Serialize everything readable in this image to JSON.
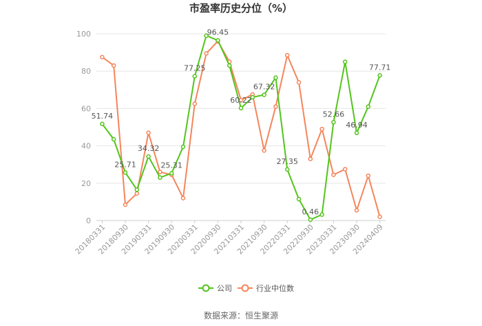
{
  "chart_data": {
    "type": "line",
    "title": "市盈率历史分位（%）",
    "xlabel": "",
    "ylabel": "",
    "ylim": [
      0,
      100
    ],
    "yticks": [
      0,
      20,
      40,
      60,
      80,
      100
    ],
    "grid": "horizontal",
    "legend_position": "bottom",
    "categories": [
      "20180331",
      "",
      "20180930",
      "",
      "20190331",
      "",
      "20190930",
      "",
      "20200331",
      "",
      "20200930",
      "",
      "20210331",
      "",
      "20210930",
      "",
      "20220331",
      "",
      "20220930",
      "",
      "20230331",
      "",
      "20230930",
      "",
      "20240409"
    ],
    "tick_labels": [
      "20180331",
      "20180930",
      "20190331",
      "20190930",
      "20200331",
      "20200930",
      "20210331",
      "20210930",
      "20220331",
      "20220930",
      "20230331",
      "20230930",
      "20240409"
    ],
    "series": [
      {
        "name": "公司",
        "color": "#52c41a",
        "values": [
          51.74,
          43.5,
          25.71,
          16.5,
          34.32,
          23.0,
          25.31,
          39.5,
          77.25,
          99.0,
          96.45,
          83.0,
          60.22,
          66.0,
          67.32,
          76.5,
          27.35,
          11.5,
          0.46,
          3.2,
          52.66,
          85.0,
          46.94,
          61.0,
          77.71
        ],
        "data_labels": {
          "0": "51.74",
          "2": "25.71",
          "4": "34.32",
          "6": "25.31",
          "8": "77.25",
          "10": "96.45",
          "12": "60.22",
          "14": "67.32",
          "16": "27.35",
          "18": "0.46",
          "20": "52.66",
          "22": "46.94",
          "24": "77.71"
        }
      },
      {
        "name": "行业中位数",
        "color": "#f5845a",
        "values": [
          87.5,
          83.0,
          8.5,
          14.5,
          47.0,
          26.0,
          24.5,
          12.0,
          62.5,
          89.5,
          96.0,
          85.0,
          64.5,
          67.5,
          37.5,
          61.0,
          88.5,
          74.0,
          33.0,
          49.0,
          24.5,
          27.5,
          5.5,
          24.0,
          2.0
        ]
      }
    ]
  },
  "footer": {
    "source": "数据来源：恒生聚源"
  }
}
